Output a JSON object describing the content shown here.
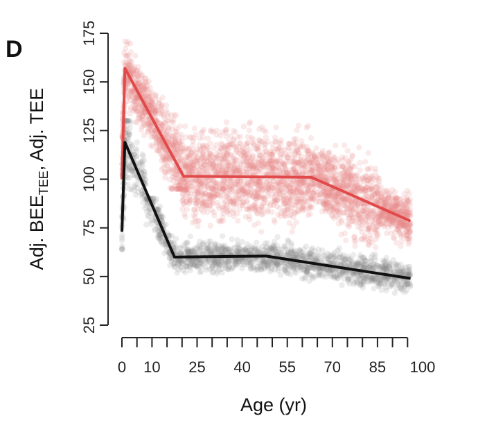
{
  "chart_data": {
    "type": "scatter",
    "panel_label": "D",
    "xlabel": "Age (yr)",
    "ylabel": {
      "prefix": "Adj. BEE",
      "subscript": "TEE",
      "suffix": ", Adj. TEE"
    },
    "xlim": [
      0,
      100
    ],
    "ylim": [
      25,
      175
    ],
    "x_ticks_labeled": [
      0,
      10,
      25,
      40,
      55,
      70,
      85,
      100
    ],
    "x_ticks_minor": [
      5,
      15,
      20,
      30,
      35,
      45,
      50,
      60,
      65,
      75,
      80,
      90,
      95
    ],
    "y_ticks": [
      25,
      50,
      75,
      100,
      125,
      150,
      175
    ],
    "grid": false,
    "series": [
      {
        "color": "#e04a4a",
        "point_color": "#e88a8a",
        "line": {
          "x": [
            0,
            1,
            20.5,
            63,
            96
          ],
          "y": [
            100,
            157,
            101.5,
            101,
            78.5
          ]
        },
        "point_spread": [
          {
            "x": [
              0,
              1
            ],
            "y": [
              70,
              165
            ]
          },
          {
            "x": [
              1,
              8
            ],
            "y": [
              110,
              178
            ]
          },
          {
            "x": [
              8,
              20
            ],
            "y": [
              95,
              165
            ]
          },
          {
            "x": [
              20,
              63
            ],
            "y": [
              70,
              160
            ]
          },
          {
            "x": [
              63,
              85
            ],
            "y": [
              65,
              145
            ]
          },
          {
            "x": [
              85,
              96
            ],
            "y": [
              55,
              110
            ]
          }
        ]
      },
      {
        "color": "#111111",
        "point_color": "#8a8a8a",
        "line": {
          "x": [
            0,
            1,
            17.5,
            48,
            96
          ],
          "y": [
            73,
            119,
            60,
            60.5,
            49
          ]
        },
        "point_spread": [
          {
            "x": [
              0,
              1
            ],
            "y": [
              45,
              120
            ]
          },
          {
            "x": [
              1,
              8
            ],
            "y": [
              65,
              130
            ]
          },
          {
            "x": [
              8,
              18
            ],
            "y": [
              50,
              90
            ]
          },
          {
            "x": [
              18,
              50
            ],
            "y": [
              42,
              80
            ]
          },
          {
            "x": [
              50,
              80
            ],
            "y": [
              38,
              75
            ]
          },
          {
            "x": [
              80,
              96
            ],
            "y": [
              30,
              62
            ]
          }
        ]
      }
    ]
  }
}
